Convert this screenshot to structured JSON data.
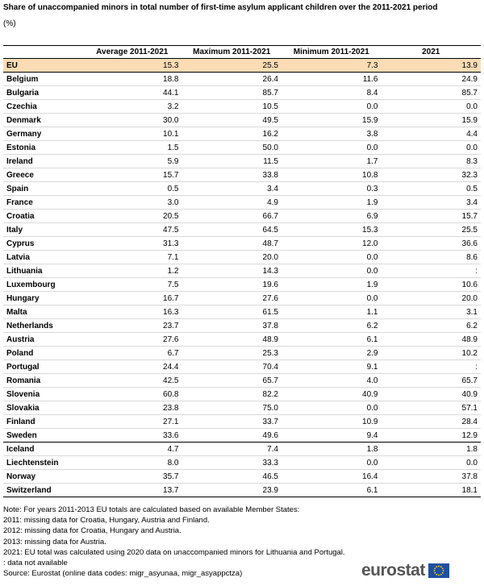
{
  "title": "Share of unaccompanied minors in total number of first-time asylum applicant children over the 2011-2021 period",
  "unit": "(%)",
  "chart_data": {
    "type": "table",
    "columns": [
      "",
      "Average 2011-2021",
      "Maximum 2011-2021",
      "Minimum 2011-2021",
      "2021"
    ],
    "rows": [
      {
        "name": "EU",
        "values": [
          "15.3",
          "25.5",
          "7.3",
          "13.9"
        ]
      },
      {
        "name": "Belgium",
        "values": [
          "18.8",
          "26.4",
          "11.6",
          "24.9"
        ]
      },
      {
        "name": "Bulgaria",
        "values": [
          "44.1",
          "85.7",
          "8.4",
          "85.7"
        ]
      },
      {
        "name": "Czechia",
        "values": [
          "3.2",
          "10.5",
          "0.0",
          "0.0"
        ]
      },
      {
        "name": "Denmark",
        "values": [
          "30.0",
          "49.5",
          "15.9",
          "15.9"
        ]
      },
      {
        "name": "Germany",
        "values": [
          "10.1",
          "16.2",
          "3.8",
          "4.4"
        ]
      },
      {
        "name": "Estonia",
        "values": [
          "1.5",
          "50.0",
          "0.0",
          "0.0"
        ]
      },
      {
        "name": "Ireland",
        "values": [
          "5.9",
          "11.5",
          "1.7",
          "8.3"
        ]
      },
      {
        "name": "Greece",
        "values": [
          "15.7",
          "33.8",
          "10.8",
          "32.3"
        ]
      },
      {
        "name": "Spain",
        "values": [
          "0.5",
          "3.4",
          "0.3",
          "0.5"
        ]
      },
      {
        "name": "France",
        "values": [
          "3.0",
          "4.9",
          "1.9",
          "3.4"
        ]
      },
      {
        "name": "Croatia",
        "values": [
          "20.5",
          "66.7",
          "6.9",
          "15.7"
        ]
      },
      {
        "name": "Italy",
        "values": [
          "47.5",
          "64.5",
          "15.3",
          "25.5"
        ]
      },
      {
        "name": "Cyprus",
        "values": [
          "31.3",
          "48.7",
          "12.0",
          "36.6"
        ]
      },
      {
        "name": "Latvia",
        "values": [
          "7.1",
          "20.0",
          "0.0",
          "8.6"
        ]
      },
      {
        "name": "Lithuania",
        "values": [
          "1.2",
          "14.3",
          "0.0",
          ":"
        ]
      },
      {
        "name": "Luxembourg",
        "values": [
          "7.5",
          "19.6",
          "1.9",
          "10.6"
        ]
      },
      {
        "name": "Hungary",
        "values": [
          "16.7",
          "27.6",
          "0.0",
          "20.0"
        ]
      },
      {
        "name": "Malta",
        "values": [
          "16.3",
          "61.5",
          "1.1",
          "3.1"
        ]
      },
      {
        "name": "Netherlands",
        "values": [
          "23.7",
          "37.8",
          "6.2",
          "6.2"
        ]
      },
      {
        "name": "Austria",
        "values": [
          "27.6",
          "48.9",
          "6.1",
          "48.9"
        ]
      },
      {
        "name": "Poland",
        "values": [
          "6.7",
          "25.3",
          "2.9",
          "10.2"
        ]
      },
      {
        "name": "Portugal",
        "values": [
          "24.4",
          "70.4",
          "9.1",
          ":"
        ]
      },
      {
        "name": "Romania",
        "values": [
          "42.5",
          "65.7",
          "4.0",
          "65.7"
        ]
      },
      {
        "name": "Slovenia",
        "values": [
          "60.8",
          "82.2",
          "40.9",
          "40.9"
        ]
      },
      {
        "name": "Slovakia",
        "values": [
          "23.8",
          "75.0",
          "0.0",
          "57.1"
        ]
      },
      {
        "name": "Finland",
        "values": [
          "27.1",
          "33.7",
          "10.9",
          "28.4"
        ]
      },
      {
        "name": "Sweden",
        "values": [
          "33.6",
          "49.6",
          "9.4",
          "12.9"
        ]
      },
      {
        "name": "Iceland",
        "values": [
          "4.7",
          "7.4",
          "1.8",
          "1.8"
        ]
      },
      {
        "name": "Liechtenstein",
        "values": [
          "8.0",
          "33.3",
          "0.0",
          "0.0"
        ]
      },
      {
        "name": "Norway",
        "values": [
          "35.7",
          "46.5",
          "16.4",
          "37.8"
        ]
      },
      {
        "name": "Switzerland",
        "values": [
          "13.7",
          "23.9",
          "6.1",
          "18.1"
        ]
      }
    ],
    "highlight_color": "#fbdcb4"
  },
  "notes": [
    "Note: For years 2011-2013 EU totals are calculated based on available Member States:",
    "2011: missing data for Croatia, Hungary, Austria and Finland.",
    "2012: missing data for Croatia, Hungary and Austria.",
    "2013: missing data for Austria.",
    "2021: EU total was calculated using 2020 data on unaccompanied minors for Lithuania and Portugal.",
    ": data not available",
    "Source: Eurostat  (online data codes: migr_asyunaa, migr_asyappctza)"
  ],
  "logo": {
    "text": "eurostat",
    "flag_color": "#1f4fa3",
    "star_color": "#ffdd00"
  }
}
